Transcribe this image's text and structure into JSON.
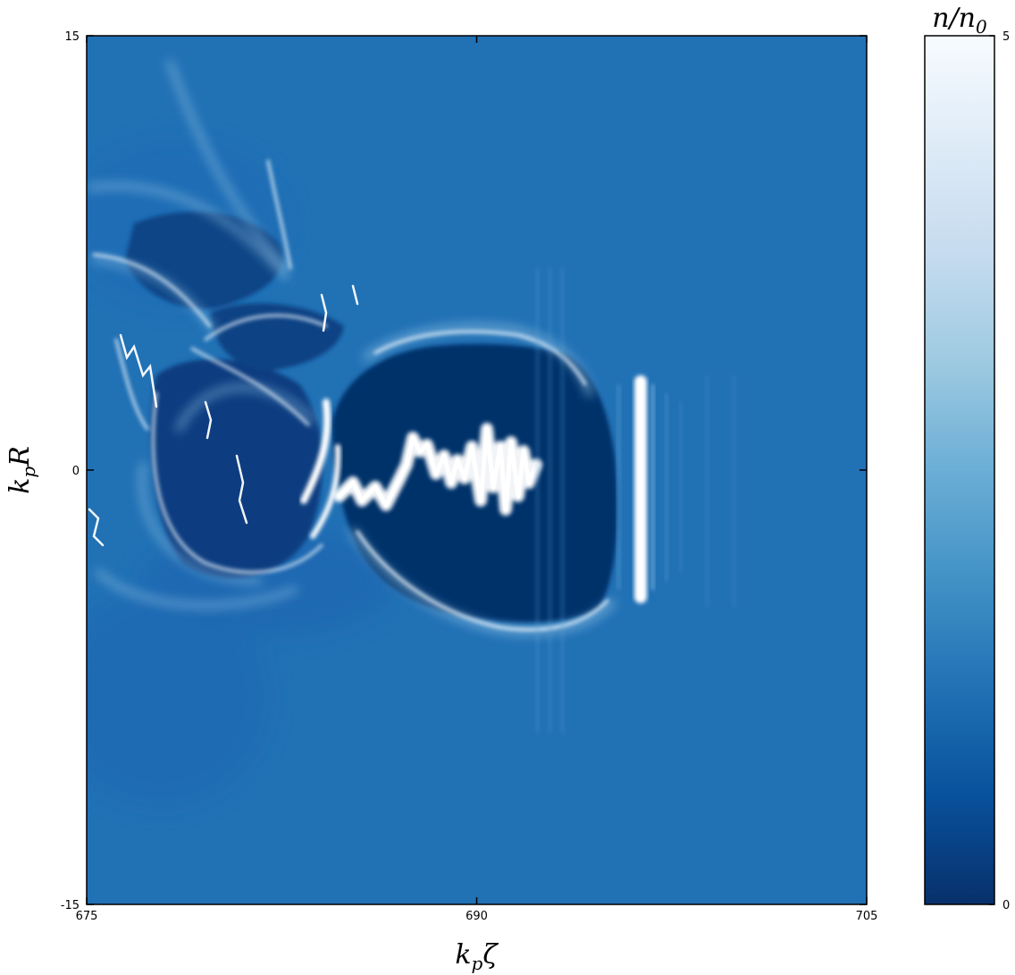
{
  "chart_data": {
    "type": "heatmap",
    "title": "",
    "xlabel": "k_pζ",
    "ylabel": "k_pR",
    "xlim": [
      675,
      705
    ],
    "ylim": [
      -15,
      15
    ],
    "x_ticks": [
      "675",
      "690",
      "705"
    ],
    "y_ticks": [
      "15",
      "0",
      "-15"
    ],
    "colorbar": {
      "label": "n/n_0",
      "range": [
        0,
        5
      ],
      "tick_labels": [
        "5",
        "0"
      ],
      "colormap": [
        "#08306b",
        "#08519c",
        "#2171b5",
        "#4292c6",
        "#6baed6",
        "#9ecae1",
        "#c6dbef",
        "#deebf7",
        "#f7fbff"
      ]
    },
    "background_level": 1.0,
    "features": [
      {
        "kind": "ion cavity",
        "zeta_center": 690.5,
        "zeta_range": [
          684,
          695.5
        ],
        "R_range": [
          -6,
          5.5
        ],
        "level": 0.0
      },
      {
        "kind": "injected electron beam",
        "zeta_range": [
          684.5,
          692.2
        ],
        "R_center": 0.5,
        "level": 5.0
      },
      {
        "kind": "density spike",
        "zeta": 697.2,
        "R_range": [
          -4.5,
          3.5
        ],
        "level": 5.0
      },
      {
        "kind": "trailing turbulent region",
        "zeta_range": [
          675,
          684
        ],
        "R_range": [
          -8,
          12
        ],
        "level": 3.0
      }
    ]
  }
}
